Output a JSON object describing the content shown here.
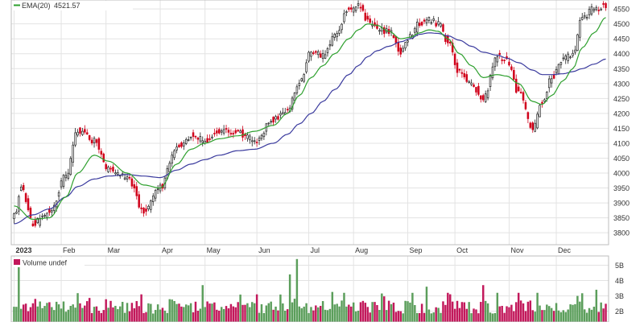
{
  "chart_data": [
    {
      "type": "candlestick",
      "ylim": [
        3760,
        4580
      ],
      "y_ticks": [
        3800,
        3850,
        3900,
        3950,
        4000,
        4050,
        4100,
        4150,
        4200,
        4250,
        4300,
        4350,
        4400,
        4450,
        4500,
        4550
      ],
      "month_labels": [
        "2023",
        "Feb",
        "Mar",
        "Apr",
        "May",
        "Jun",
        "Jul",
        "Aug",
        "Sep",
        "Oct",
        "Nov",
        "Dec"
      ],
      "legend": {
        "ema_label": "EMA(20)",
        "ema_value": "4521.57"
      },
      "colors": {
        "up": "#222222",
        "down": "#d0021b",
        "ema_fast": "#2ea02e",
        "ema_slow": "#3b3b9e",
        "grid": "#e3e3e3"
      },
      "grid": true,
      "anchors": {
        "close": [
          [
            0,
            3853
          ],
          [
            3,
            3955
          ],
          [
            8,
            3830
          ],
          [
            15,
            3870
          ],
          [
            22,
            3990
          ],
          [
            27,
            4140
          ],
          [
            34,
            4110
          ],
          [
            40,
            4010
          ],
          [
            48,
            3988
          ],
          [
            55,
            3872
          ],
          [
            62,
            3952
          ],
          [
            69,
            4090
          ],
          [
            75,
            4125
          ],
          [
            81,
            4110
          ],
          [
            87,
            4140
          ],
          [
            95,
            4135
          ],
          [
            102,
            4110
          ],
          [
            110,
            4178
          ],
          [
            116,
            4215
          ],
          [
            121,
            4300
          ],
          [
            126,
            4410
          ],
          [
            131,
            4392
          ],
          [
            136,
            4460
          ],
          [
            142,
            4548
          ],
          [
            146,
            4565
          ],
          [
            150,
            4510
          ],
          [
            154,
            4480
          ],
          [
            159,
            4475
          ],
          [
            164,
            4405
          ],
          [
            168,
            4455
          ],
          [
            172,
            4505
          ],
          [
            176,
            4515
          ],
          [
            180,
            4498
          ],
          [
            184,
            4440
          ],
          [
            189,
            4338
          ],
          [
            194,
            4300
          ],
          [
            199,
            4245
          ],
          [
            205,
            4390
          ],
          [
            209,
            4378
          ],
          [
            214,
            4270
          ],
          [
            220,
            4150
          ],
          [
            224,
            4237
          ],
          [
            228,
            4320
          ],
          [
            233,
            4380
          ],
          [
            237,
            4400
          ],
          [
            241,
            4520
          ],
          [
            246,
            4550
          ],
          [
            251,
            4558
          ]
        ],
        "ema_fast": [
          [
            0,
            3890
          ],
          [
            8,
            3845
          ],
          [
            15,
            3850
          ],
          [
            22,
            3920
          ],
          [
            27,
            4000
          ],
          [
            34,
            4060
          ],
          [
            40,
            4040
          ],
          [
            48,
            4000
          ],
          [
            55,
            3960
          ],
          [
            62,
            3950
          ],
          [
            69,
            4030
          ],
          [
            75,
            4080
          ],
          [
            81,
            4100
          ],
          [
            87,
            4115
          ],
          [
            95,
            4125
          ],
          [
            102,
            4140
          ],
          [
            110,
            4160
          ],
          [
            116,
            4200
          ],
          [
            121,
            4260
          ],
          [
            126,
            4320
          ],
          [
            131,
            4360
          ],
          [
            136,
            4400
          ],
          [
            142,
            4450
          ],
          [
            146,
            4480
          ],
          [
            150,
            4500
          ],
          [
            154,
            4495
          ],
          [
            159,
            4475
          ],
          [
            164,
            4450
          ],
          [
            168,
            4455
          ],
          [
            172,
            4470
          ],
          [
            176,
            4480
          ],
          [
            180,
            4475
          ],
          [
            184,
            4450
          ],
          [
            189,
            4400
          ],
          [
            194,
            4360
          ],
          [
            199,
            4320
          ],
          [
            205,
            4330
          ],
          [
            209,
            4325
          ],
          [
            214,
            4300
          ],
          [
            220,
            4240
          ],
          [
            224,
            4230
          ],
          [
            228,
            4260
          ],
          [
            233,
            4310
          ],
          [
            237,
            4350
          ],
          [
            241,
            4420
          ],
          [
            246,
            4470
          ],
          [
            251,
            4521.57
          ]
        ],
        "ema_slow": [
          [
            0,
            3830
          ],
          [
            8,
            3860
          ],
          [
            15,
            3880
          ],
          [
            22,
            3920
          ],
          [
            27,
            3955
          ],
          [
            34,
            3980
          ],
          [
            40,
            3990
          ],
          [
            48,
            3995
          ],
          [
            55,
            3990
          ],
          [
            62,
            3985
          ],
          [
            69,
            4010
          ],
          [
            75,
            4030
          ],
          [
            81,
            4045
          ],
          [
            87,
            4060
          ],
          [
            95,
            4075
          ],
          [
            102,
            4080
          ],
          [
            110,
            4100
          ],
          [
            116,
            4130
          ],
          [
            121,
            4165
          ],
          [
            126,
            4200
          ],
          [
            131,
            4240
          ],
          [
            136,
            4280
          ],
          [
            142,
            4330
          ],
          [
            146,
            4360
          ],
          [
            150,
            4390
          ],
          [
            154,
            4410
          ],
          [
            159,
            4425
          ],
          [
            164,
            4440
          ],
          [
            168,
            4450
          ],
          [
            172,
            4465
          ],
          [
            176,
            4470
          ],
          [
            180,
            4468
          ],
          [
            184,
            4460
          ],
          [
            189,
            4445
          ],
          [
            194,
            4425
          ],
          [
            199,
            4405
          ],
          [
            205,
            4395
          ],
          [
            209,
            4385
          ],
          [
            214,
            4370
          ],
          [
            220,
            4345
          ],
          [
            224,
            4330
          ],
          [
            228,
            4330
          ],
          [
            233,
            4333
          ],
          [
            237,
            4340
          ],
          [
            241,
            4350
          ],
          [
            246,
            4365
          ],
          [
            251,
            4382
          ]
        ]
      }
    },
    {
      "type": "bar",
      "title": "Volume undef",
      "ylim": [
        1.3,
        5.6
      ],
      "y_ticks": [
        2,
        3,
        4,
        5
      ],
      "y_tick_labels": [
        "2B",
        "3B",
        "4B",
        "5B"
      ],
      "colors": {
        "up": "#5b9e5b",
        "down": "#c2185b"
      }
    }
  ]
}
